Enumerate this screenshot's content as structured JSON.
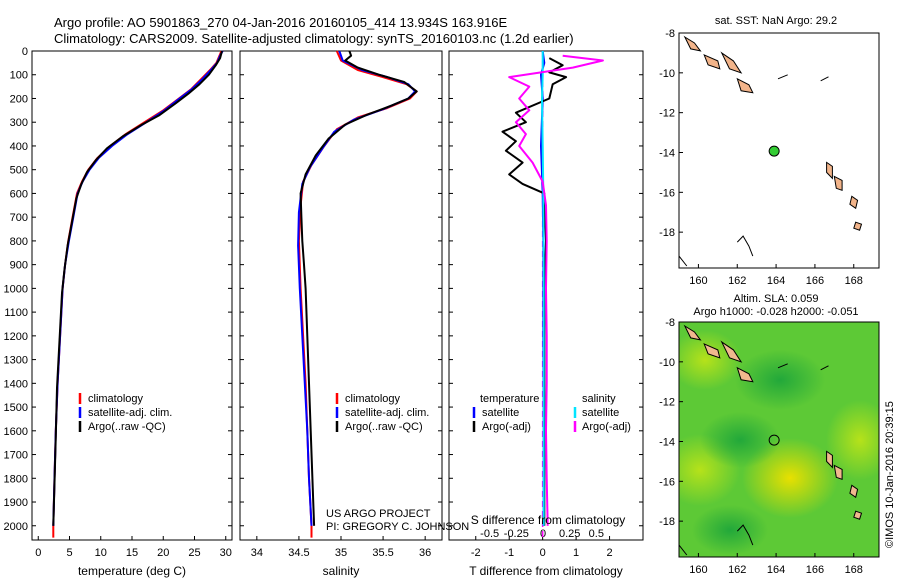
{
  "header": {
    "line1": "Argo profile: AO 5901863_270 04-Jan-2016 20160105_414 13.934S 163.916E",
    "line2": "Climatology: CARS2009. Satellite-adjusted climatology: synTS_20160103.nc (1.2d earlier)"
  },
  "colors": {
    "climatology": "#ff0000",
    "satellite": "#0000ff",
    "argo": "#000000",
    "sal_satellite": "#00e5ff",
    "sal_argo": "#ff00ff",
    "land": "#f2b48a",
    "map_dot": "#33cc33"
  },
  "chart_data": [
    {
      "type": "line",
      "id": "temperature",
      "xlabel": "temperature (deg C)",
      "ylabel": "",
      "xlim": [
        -1,
        31
      ],
      "ylim": [
        0,
        2060
      ],
      "xticks": [
        "0",
        "5",
        "10",
        "15",
        "20",
        "25",
        "30"
      ],
      "xtick_values": [
        0,
        5,
        10,
        15,
        20,
        25,
        30
      ],
      "yticks": [
        "0",
        "100",
        "200",
        "300",
        "400",
        "500",
        "600",
        "700",
        "800",
        "900",
        "1000",
        "1100",
        "1200",
        "1300",
        "1400",
        "1500",
        "1600",
        "1700",
        "1800",
        "1900",
        "2000"
      ],
      "ytick_values": [
        0,
        100,
        200,
        300,
        400,
        500,
        600,
        700,
        800,
        900,
        1000,
        1100,
        1200,
        1300,
        1400,
        1500,
        1600,
        1700,
        1800,
        1900,
        2000
      ],
      "legend": [
        "climatology",
        "satellite-adj. clim.",
        "Argo(..raw -QC)"
      ],
      "series": [
        {
          "name": "climatology",
          "color": "#ff0000",
          "points": [
            [
              29.3,
              0
            ],
            [
              29.0,
              20
            ],
            [
              28.5,
              50
            ],
            [
              27.5,
              80
            ],
            [
              26.0,
              120
            ],
            [
              24.5,
              160
            ],
            [
              22.5,
              200
            ],
            [
              20.0,
              250
            ],
            [
              17.0,
              300
            ],
            [
              14.0,
              350
            ],
            [
              11.5,
              400
            ],
            [
              9.5,
              450
            ],
            [
              8.0,
              500
            ],
            [
              7.0,
              550
            ],
            [
              6.2,
              600
            ],
            [
              5.5,
              700
            ],
            [
              4.8,
              800
            ],
            [
              4.3,
              900
            ],
            [
              3.9,
              1000
            ],
            [
              3.5,
              1200
            ],
            [
              3.1,
              1400
            ],
            [
              2.8,
              1600
            ],
            [
              2.6,
              1800
            ],
            [
              2.4,
              2000
            ],
            [
              2.4,
              2050
            ]
          ]
        },
        {
          "name": "satellite-adj. clim.",
          "color": "#0000ff",
          "points": [
            [
              29.5,
              0
            ],
            [
              29.1,
              20
            ],
            [
              28.6,
              50
            ],
            [
              27.6,
              80
            ],
            [
              26.2,
              120
            ],
            [
              24.6,
              160
            ],
            [
              22.6,
              200
            ],
            [
              20.2,
              250
            ],
            [
              17.3,
              300
            ],
            [
              14.3,
              350
            ],
            [
              11.8,
              400
            ],
            [
              9.7,
              450
            ],
            [
              8.2,
              500
            ],
            [
              7.1,
              550
            ],
            [
              6.3,
              600
            ],
            [
              5.6,
              700
            ],
            [
              4.9,
              800
            ],
            [
              4.3,
              900
            ],
            [
              3.9,
              1000
            ],
            [
              3.5,
              1200
            ],
            [
              3.1,
              1400
            ],
            [
              2.8,
              1600
            ],
            [
              2.6,
              1800
            ],
            [
              2.4,
              2000
            ]
          ]
        },
        {
          "name": "Argo(..raw -QC)",
          "color": "#000000",
          "points": [
            [
              29.4,
              0
            ],
            [
              29.1,
              30
            ],
            [
              28.4,
              60
            ],
            [
              27.3,
              100
            ],
            [
              25.8,
              140
            ],
            [
              24.0,
              180
            ],
            [
              22.0,
              220
            ],
            [
              19.4,
              270
            ],
            [
              16.6,
              310
            ],
            [
              13.5,
              360
            ],
            [
              11.0,
              410
            ],
            [
              9.2,
              460
            ],
            [
              7.8,
              510
            ],
            [
              6.9,
              560
            ],
            [
              6.1,
              620
            ],
            [
              5.4,
              720
            ],
            [
              4.7,
              820
            ],
            [
              4.2,
              920
            ],
            [
              3.8,
              1020
            ],
            [
              3.4,
              1220
            ],
            [
              3.0,
              1420
            ],
            [
              2.8,
              1620
            ],
            [
              2.6,
              1820
            ],
            [
              2.4,
              2000
            ]
          ]
        }
      ]
    },
    {
      "type": "line",
      "id": "salinity",
      "xlabel": "salinity",
      "xlim": [
        33.8,
        36.2
      ],
      "ylim": [
        0,
        2060
      ],
      "xticks": [
        "34",
        "34.5",
        "35",
        "35.5",
        "36"
      ],
      "xtick_values": [
        34,
        34.5,
        35,
        35.5,
        36
      ],
      "legend": [
        "climatology",
        "satellite-adj. clim.",
        "Argo(..raw -QC)"
      ],
      "annotations": [
        "US ARGO PROJECT",
        "PI: GREGORY C. JOHNSON"
      ],
      "series": [
        {
          "name": "climatology",
          "color": "#ff0000",
          "points": [
            [
              34.95,
              0
            ],
            [
              35.0,
              40
            ],
            [
              35.2,
              80
            ],
            [
              35.5,
              110
            ],
            [
              35.78,
              140
            ],
            [
              35.9,
              170
            ],
            [
              35.82,
              200
            ],
            [
              35.55,
              240
            ],
            [
              35.2,
              280
            ],
            [
              34.95,
              330
            ],
            [
              34.8,
              400
            ],
            [
              34.65,
              480
            ],
            [
              34.55,
              550
            ],
            [
              34.52,
              650
            ],
            [
              34.5,
              800
            ],
            [
              34.52,
              1000
            ],
            [
              34.55,
              1200
            ],
            [
              34.58,
              1400
            ],
            [
              34.6,
              1600
            ],
            [
              34.62,
              1800
            ],
            [
              34.65,
              2000
            ],
            [
              34.65,
              2050
            ]
          ]
        },
        {
          "name": "satellite-adj. clim.",
          "color": "#0000ff",
          "points": [
            [
              34.98,
              0
            ],
            [
              35.02,
              40
            ],
            [
              35.25,
              80
            ],
            [
              35.55,
              110
            ],
            [
              35.8,
              140
            ],
            [
              35.88,
              170
            ],
            [
              35.8,
              200
            ],
            [
              35.5,
              245
            ],
            [
              35.15,
              290
            ],
            [
              34.92,
              340
            ],
            [
              34.78,
              410
            ],
            [
              34.63,
              490
            ],
            [
              34.54,
              560
            ],
            [
              34.5,
              680
            ],
            [
              34.49,
              820
            ],
            [
              34.51,
              1000
            ],
            [
              34.54,
              1200
            ],
            [
              34.57,
              1400
            ],
            [
              34.6,
              1600
            ],
            [
              34.62,
              1800
            ],
            [
              34.65,
              2000
            ]
          ]
        },
        {
          "name": "Argo(..raw -QC)",
          "color": "#000000",
          "points": [
            [
              35.1,
              0
            ],
            [
              35.12,
              20
            ],
            [
              35.05,
              40
            ],
            [
              35.2,
              70
            ],
            [
              35.45,
              100
            ],
            [
              35.75,
              130
            ],
            [
              35.9,
              170
            ],
            [
              35.8,
              200
            ],
            [
              35.6,
              230
            ],
            [
              35.3,
              270
            ],
            [
              35.05,
              310
            ],
            [
              34.85,
              370
            ],
            [
              34.7,
              440
            ],
            [
              34.58,
              520
            ],
            [
              34.52,
              600
            ],
            [
              34.53,
              700
            ],
            [
              34.54,
              800
            ],
            [
              34.56,
              900
            ],
            [
              34.58,
              1000
            ],
            [
              34.6,
              1200
            ],
            [
              34.62,
              1400
            ],
            [
              34.64,
              1600
            ],
            [
              34.66,
              1800
            ],
            [
              34.68,
              2000
            ]
          ]
        }
      ]
    },
    {
      "type": "line",
      "id": "difference",
      "xlabel": "T difference from climatology",
      "top_label": "S difference from climatology",
      "xlim": [
        -2.8,
        3.0
      ],
      "ylim": [
        0,
        2060
      ],
      "xticks": [
        "-2",
        "-1",
        "0",
        "1",
        "2"
      ],
      "xtick_values": [
        -2,
        -1,
        0,
        1,
        2
      ],
      "sticks": [
        "-0.5",
        "-0.25",
        "0",
        "0.25",
        "0.5"
      ],
      "stick_values": [
        -0.5,
        -0.25,
        0,
        0.25,
        0.5
      ],
      "legend_temperature": [
        "temperature",
        "satellite",
        "Argo(-adj)"
      ],
      "legend_salinity": [
        "salinity",
        "satellite",
        "Argo(-adj)"
      ],
      "series": [
        {
          "name": "temperature satellite",
          "color": "#0000ff",
          "points": [
            [
              0.0,
              0
            ],
            [
              0.05,
              50
            ],
            [
              -0.05,
              100
            ],
            [
              0.0,
              200
            ],
            [
              -0.05,
              400
            ],
            [
              0.0,
              600
            ],
            [
              0.02,
              800
            ],
            [
              0.02,
              1200
            ],
            [
              0.03,
              1600
            ],
            [
              0.03,
              2000
            ]
          ]
        },
        {
          "name": "temperature Argo(-adj)",
          "color": "#000000",
          "points": [
            [
              0.2,
              30
            ],
            [
              0.6,
              60
            ],
            [
              0.2,
              90
            ],
            [
              0.7,
              110
            ],
            [
              0.3,
              140
            ],
            [
              0.2,
              200
            ],
            [
              -0.8,
              260
            ],
            [
              -0.5,
              300
            ],
            [
              -1.2,
              340
            ],
            [
              -0.8,
              380
            ],
            [
              -1.1,
              420
            ],
            [
              -0.6,
              470
            ],
            [
              -1.0,
              520
            ],
            [
              -0.6,
              560
            ],
            [
              0.05,
              600
            ],
            [
              0.1,
              800
            ],
            [
              0.05,
              1000
            ],
            [
              0.05,
              1400
            ],
            [
              0.05,
              1800
            ],
            [
              0.05,
              2000
            ]
          ]
        },
        {
          "name": "salinity satellite",
          "color": "#00e5ff",
          "points": [
            [
              0.0,
              0
            ],
            [
              0.0,
              100
            ],
            [
              -0.02,
              200
            ],
            [
              0.0,
              400
            ],
            [
              0.02,
              600
            ],
            [
              0.03,
              1000
            ],
            [
              0.03,
              1500
            ],
            [
              0.03,
              2000
            ]
          ]
        },
        {
          "name": "salinity Argo(-adj)",
          "color": "#ff00ff",
          "points": [
            [
              0.6,
              20
            ],
            [
              1.8,
              40
            ],
            [
              0.9,
              70
            ],
            [
              -1.0,
              110
            ],
            [
              -0.4,
              150
            ],
            [
              -0.7,
              200
            ],
            [
              -0.4,
              250
            ],
            [
              -0.8,
              300
            ],
            [
              -0.5,
              350
            ],
            [
              -0.7,
              400
            ],
            [
              -0.3,
              470
            ],
            [
              0.0,
              550
            ],
            [
              0.1,
              650
            ],
            [
              0.12,
              800
            ],
            [
              0.1,
              1000
            ],
            [
              0.12,
              1200
            ],
            [
              0.12,
              1400
            ],
            [
              0.1,
              1600
            ],
            [
              0.12,
              1800
            ],
            [
              0.15,
              2000
            ]
          ]
        }
      ]
    },
    {
      "type": "scatter",
      "id": "sst_map",
      "title": "sat. SST: NaN Argo: 29.2",
      "xlim": [
        159,
        169.3
      ],
      "ylim": [
        -19.8,
        -8
      ],
      "xticks": [
        "160",
        "162",
        "164",
        "166",
        "168"
      ],
      "xtick_values": [
        160,
        162,
        164,
        166,
        168
      ],
      "yticks": [
        "-8",
        "-10",
        "-12",
        "-14",
        "-16",
        "-18"
      ],
      "ytick_values": [
        -8,
        -10,
        -12,
        -14,
        -16,
        -18
      ],
      "points": [
        [
          163.9,
          -13.93
        ]
      ]
    },
    {
      "type": "heatmap",
      "id": "sla_map",
      "title": "Altim. SLA: 0.059",
      "subtitle": "Argo h1000: -0.028 h2000: -0.051",
      "xlim": [
        159,
        169.3
      ],
      "ylim": [
        -19.8,
        -8
      ],
      "xticks": [
        "160",
        "162",
        "164",
        "166",
        "168"
      ],
      "xtick_values": [
        160,
        162,
        164,
        166,
        168
      ],
      "yticks": [
        "-8",
        "-10",
        "-12",
        "-14",
        "-16",
        "-18"
      ],
      "ytick_values": [
        -8,
        -10,
        -12,
        -14,
        -16,
        -18
      ],
      "points": [
        [
          163.9,
          -13.93
        ]
      ]
    }
  ],
  "footer": {
    "timestamp": "©IMOS 10-Jan-2016 20:39:15"
  }
}
